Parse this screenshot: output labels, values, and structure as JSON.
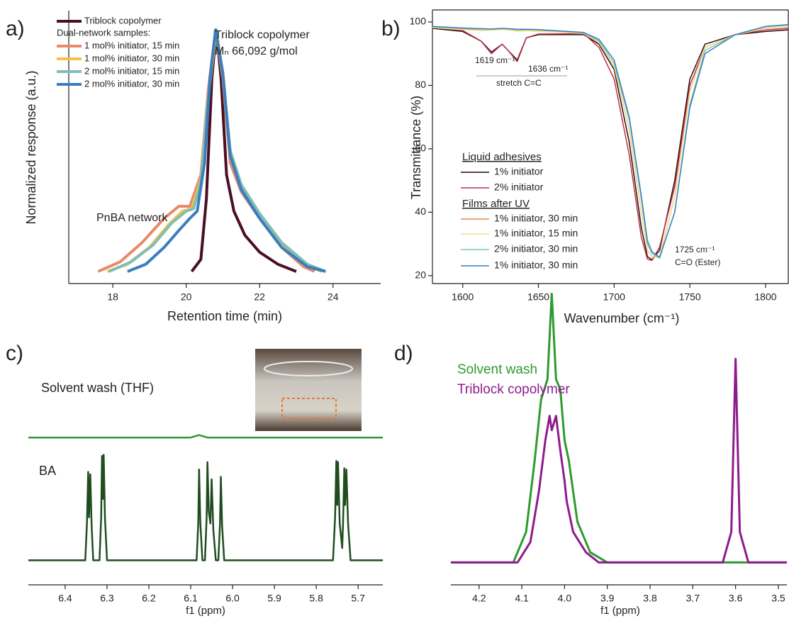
{
  "chart_data": [
    {
      "type": "line",
      "label": "a)",
      "xlabel": "Retention time (min)",
      "ylabel": "Normalized response (a.u.)",
      "xlim": [
        16.8,
        25.3
      ],
      "ylim": [
        -0.05,
        1.08
      ],
      "xticks": [
        18,
        20,
        22,
        24
      ],
      "legend_title": "Dual-network samples:",
      "annotations": [
        "Triblock copolymer",
        "Mₙ 66,092 g/mol",
        "PnBA network"
      ],
      "series": [
        {
          "name": "Triblock copolymer",
          "color": "#4a0f22",
          "x": [
            20.15,
            20.4,
            20.55,
            20.7,
            20.82,
            20.95,
            21.1,
            21.3,
            21.6,
            22,
            22.5,
            23
          ],
          "values": [
            0,
            0.05,
            0.3,
            0.8,
            1,
            0.8,
            0.4,
            0.25,
            0.15,
            0.08,
            0.03,
            0
          ]
        },
        {
          "name": "1 mol% initiator, 15 min",
          "color": "#e8896a",
          "x": [
            17.6,
            18.2,
            18.8,
            19.4,
            19.8,
            20.1,
            20.4,
            20.6,
            20.8,
            21,
            21.2,
            21.5,
            22,
            22.6,
            23.2,
            23.5
          ],
          "values": [
            0,
            0.04,
            0.12,
            0.22,
            0.27,
            0.27,
            0.4,
            0.75,
            1,
            0.8,
            0.45,
            0.33,
            0.22,
            0.1,
            0.02,
            0
          ]
        },
        {
          "name": "1 mol% initiator, 30 min",
          "color": "#f5c242",
          "x": [
            17.85,
            18.4,
            19,
            19.5,
            19.9,
            20.15,
            20.4,
            20.6,
            20.82,
            21,
            21.2,
            21.5,
            22,
            22.6,
            23.2,
            23.7
          ],
          "values": [
            0,
            0.03,
            0.1,
            0.19,
            0.25,
            0.26,
            0.38,
            0.72,
            1,
            0.82,
            0.48,
            0.34,
            0.23,
            0.11,
            0.03,
            0
          ]
        },
        {
          "name": "2 mol% initiator, 15 min",
          "color": "#7fbfb5",
          "x": [
            17.9,
            18.5,
            19.1,
            19.6,
            20,
            20.2,
            20.4,
            20.6,
            20.8,
            21,
            21.2,
            21.5,
            22,
            22.6,
            23.3,
            23.8
          ],
          "values": [
            0,
            0.04,
            0.11,
            0.2,
            0.25,
            0.26,
            0.37,
            0.72,
            1,
            0.82,
            0.5,
            0.36,
            0.24,
            0.12,
            0.03,
            0
          ]
        },
        {
          "name": "2 mol% initiator, 30 min",
          "color": "#3a7ebf",
          "x": [
            18.4,
            18.9,
            19.4,
            19.8,
            20.1,
            20.3,
            20.5,
            20.65,
            20.8,
            21,
            21.2,
            21.5,
            22,
            22.6,
            23.3,
            23.8
          ],
          "values": [
            0,
            0.03,
            0.1,
            0.17,
            0.22,
            0.25,
            0.45,
            0.8,
            1,
            0.82,
            0.48,
            0.34,
            0.22,
            0.1,
            0.02,
            0
          ]
        }
      ]
    },
    {
      "type": "line",
      "label": "b)",
      "xlabel": "Wavenumber (cm⁻¹)",
      "ylabel": "Transmittance (%)",
      "xlim": [
        1580,
        1815
      ],
      "ylim": [
        17.5,
        103.8
      ],
      "xticks": [
        1600,
        1650,
        1700,
        1750,
        1800
      ],
      "yticks": [
        20,
        40,
        60,
        80,
        100
      ],
      "legend_groups": [
        "Liquid adhesives",
        "Films after UV"
      ],
      "annotations": [
        "1619 cm⁻¹",
        "1636 cm⁻¹",
        "stretch C=C",
        "1725 cm⁻¹",
        "C=O (Ester)"
      ],
      "x": [
        1580,
        1600,
        1612,
        1619,
        1626,
        1630,
        1636,
        1642,
        1650,
        1680,
        1690,
        1700,
        1710,
        1718,
        1722,
        1725,
        1730,
        1740,
        1750,
        1760,
        1780,
        1800,
        1815
      ],
      "series": [
        {
          "name": "1% initiator",
          "color": "#2b0a0f",
          "values": [
            98,
            97,
            94,
            90.5,
            93,
            91,
            88,
            95,
            96,
            96,
            93,
            85,
            62,
            35,
            26,
            25,
            28,
            50,
            82,
            93,
            96,
            97,
            97.5
          ]
        },
        {
          "name": "2% initiator",
          "color": "#c0304a",
          "values": [
            98.3,
            97.3,
            94,
            90,
            93,
            91,
            87.5,
            95,
            96.2,
            96.3,
            92,
            82,
            58,
            32,
            25.2,
            24.8,
            29,
            48,
            80,
            92,
            96,
            97.5,
            98
          ]
        },
        {
          "name": "1% initiator, 30 min",
          "color": "#e8894f",
          "values": [
            98.4,
            97.8,
            97.4,
            97.5,
            97.8,
            97.6,
            97.2,
            97.3,
            97.2,
            96.5,
            93.5,
            86,
            66,
            40,
            28,
            26,
            25.8,
            45,
            78,
            92,
            96,
            98,
            98.5
          ]
        },
        {
          "name": "1% initiator, 15 min",
          "color": "#f2e08a",
          "values": [
            98.2,
            97.6,
            97.3,
            97.4,
            97.6,
            97.5,
            97.1,
            97.2,
            97.1,
            96.4,
            93.5,
            86,
            66,
            40,
            28,
            26,
            26,
            45,
            78,
            92,
            96,
            98,
            98.5
          ]
        },
        {
          "name": "2% initiator, 30 min",
          "color": "#7fc9b5",
          "values": [
            98.5,
            98,
            97.8,
            97.7,
            97.9,
            97.8,
            97.6,
            97.6,
            97.5,
            96.6,
            94,
            87,
            69,
            44,
            30,
            27,
            25.5,
            40,
            74,
            91,
            96,
            98.5,
            99
          ]
        },
        {
          "name": "1% initiator, 30 min",
          "color": "#3b7fc0",
          "values": [
            98.6,
            98.1,
            97.9,
            97.8,
            98,
            97.9,
            97.7,
            97.7,
            97.6,
            96.7,
            94.5,
            88,
            70,
            45,
            31,
            27.5,
            25.8,
            40,
            73,
            90,
            96,
            98.6,
            99.2
          ]
        }
      ]
    },
    {
      "type": "line",
      "label": "c)",
      "xlabel": "f1 (ppm)",
      "xlim": [
        6.488,
        5.641
      ],
      "ylim": [
        -0.2,
        1.85
      ],
      "xticks": [
        6.4,
        6.3,
        6.2,
        6.1,
        {
          "value": 6,
          "label": "6.0"
        },
        5.9,
        5.8,
        5.7
      ],
      "series": [
        {
          "name": "Solvent wash (THF)",
          "color": "#2e9a2e",
          "x": [
            6.488,
            6.1,
            6.08,
            6.06,
            5.641
          ],
          "values": [
            1,
            1,
            1.02,
            1,
            1
          ]
        },
        {
          "name": "BA",
          "color": "#1f4d1f",
          "x": [
            6.488,
            6.352,
            6.348,
            6.345,
            6.343,
            6.34,
            6.337,
            6.333,
            6.318,
            6.314,
            6.312,
            6.31,
            6.308,
            6.305,
            6.3,
            6.086,
            6.082,
            6.08,
            6.077,
            6.072,
            6.066,
            6.062,
            6.06,
            6.057,
            6.053,
            6.05,
            6.046,
            6.04,
            6.034,
            6.03,
            6.028,
            6.025,
            6.02,
            5.76,
            5.755,
            5.752,
            5.75,
            5.748,
            5.744,
            5.738,
            5.736,
            5.733,
            5.731,
            5.728,
            5.724,
            5.718,
            5.641
          ],
          "values": [
            0,
            0,
            0.3,
            0.72,
            0.35,
            0.7,
            0.3,
            0,
            0,
            0.35,
            0.85,
            0.5,
            0.86,
            0.35,
            0,
            0,
            0.3,
            0.74,
            0.3,
            0,
            0,
            0.35,
            0.8,
            0.4,
            0.3,
            0.66,
            0.25,
            0,
            0,
            0.3,
            0.68,
            0.28,
            0,
            0,
            0.35,
            0.81,
            0.45,
            0.8,
            0.3,
            0.1,
            0.3,
            0.75,
            0.45,
            0.74,
            0.3,
            0,
            0
          ]
        }
      ]
    },
    {
      "type": "line",
      "label": "d)",
      "xlabel": "f1 (ppm)",
      "xlim": [
        4.266,
        3.48
      ],
      "ylim": [
        -0.11,
        1.37
      ],
      "xticks": [
        4.2,
        4.1,
        {
          "value": 4,
          "label": "4.0"
        },
        3.9,
        3.8,
        3.7,
        3.6,
        3.5
      ],
      "series": [
        {
          "name": "Solvent wash",
          "color": "#2e9a2e",
          "x": [
            4.266,
            4.12,
            4.09,
            4.07,
            4.055,
            4.04,
            4.03,
            4.02,
            4.01,
            4.0,
            3.99,
            3.97,
            3.94,
            3.9,
            3.48
          ],
          "values": [
            0,
            0,
            0.15,
            0.5,
            0.8,
            0.9,
            1.32,
            0.9,
            0.85,
            0.6,
            0.5,
            0.2,
            0.05,
            0,
            0
          ]
        },
        {
          "name": "Triblock copolymer",
          "color": "#8e1b8e",
          "x": [
            4.266,
            4.11,
            4.08,
            4.06,
            4.045,
            4.035,
            4.03,
            4.02,
            4.01,
            4.0,
            3.995,
            3.98,
            3.95,
            3.92,
            3.63,
            3.61,
            3.6,
            3.59,
            3.57,
            3.48
          ],
          "values": [
            0,
            0,
            0.1,
            0.35,
            0.6,
            0.72,
            0.65,
            0.72,
            0.55,
            0.4,
            0.3,
            0.15,
            0.05,
            0,
            0,
            0.15,
            1,
            0.15,
            0,
            0
          ]
        }
      ]
    }
  ]
}
